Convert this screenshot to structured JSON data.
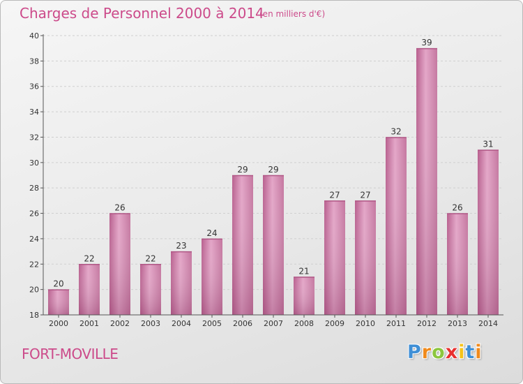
{
  "header": {
    "title": "Charges de Personnel 2000 à 2014",
    "subtitle": "(en milliers d'€)"
  },
  "footer": {
    "place": "FORT-MOVILLE",
    "logo": [
      "P",
      "r",
      "o",
      "x",
      "i",
      "t",
      "i"
    ],
    "logo_colors": [
      "#3f8fd6",
      "#f08a1c",
      "#8cc63e",
      "#e8302f",
      "#f6c31b",
      "#3f8fd6",
      "#f08a1c"
    ]
  },
  "chart_data": {
    "type": "bar",
    "title": "Charges de Personnel 2000 à 2014",
    "subtitle": "(en milliers d'€)",
    "categories": [
      "2000",
      "2001",
      "2002",
      "2003",
      "2004",
      "2005",
      "2006",
      "2007",
      "2008",
      "2009",
      "2010",
      "2011",
      "2012",
      "2013",
      "2014"
    ],
    "values": [
      20,
      22,
      26,
      22,
      23,
      24,
      29,
      29,
      21,
      27,
      27,
      32,
      39,
      26,
      31
    ],
    "ylim": [
      18,
      40
    ],
    "yticks": [
      18,
      20,
      22,
      24,
      26,
      28,
      30,
      32,
      34,
      36,
      38,
      40
    ],
    "grid": true,
    "bar_color": "#cc6a9e"
  }
}
